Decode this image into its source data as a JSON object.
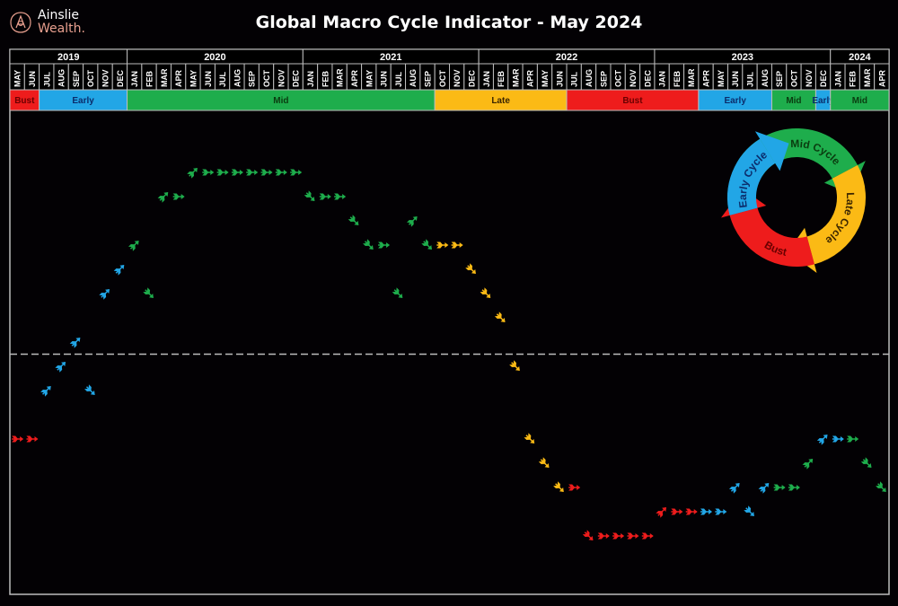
{
  "brand": {
    "line1": "Ainslie",
    "line2": "Wealth."
  },
  "chart_data": {
    "type": "line",
    "title": "Global Macro Cycle Indicator - May 2024",
    "years": [
      {
        "label": "2019",
        "months": 8
      },
      {
        "label": "2020",
        "months": 12
      },
      {
        "label": "2021",
        "months": 12
      },
      {
        "label": "2022",
        "months": 12
      },
      {
        "label": "2023",
        "months": 12
      },
      {
        "label": "2024",
        "months": 4
      }
    ],
    "months": [
      "MAY",
      "JUN",
      "JUL",
      "AUG",
      "SEP",
      "OCT",
      "NOV",
      "DEC",
      "JAN",
      "FEB",
      "MAR",
      "APR",
      "MAY",
      "JUN",
      "JUL",
      "AUG",
      "SEP",
      "OCT",
      "NOV",
      "DEC",
      "JAN",
      "FEB",
      "MAR",
      "APR",
      "MAY",
      "JUN",
      "JUL",
      "AUG",
      "SEP",
      "OCT",
      "NOV",
      "DEC",
      "JAN",
      "FEB",
      "MAR",
      "APR",
      "MAY",
      "JUN",
      "JUL",
      "AUG",
      "SEP",
      "OCT",
      "NOV",
      "DEC",
      "JAN",
      "FEB",
      "MAR",
      "APR",
      "MAY",
      "JUN",
      "JUL",
      "AUG",
      "SEP",
      "OCT",
      "NOV",
      "DEC",
      "JAN",
      "FEB",
      "MAR",
      "APR"
    ],
    "phase_bands": [
      {
        "label": "Bust",
        "phase": "bust",
        "months": 2
      },
      {
        "label": "Early",
        "phase": "early",
        "months": 6
      },
      {
        "label": "Mid",
        "phase": "mid",
        "months": 21
      },
      {
        "label": "Late",
        "phase": "late",
        "months": 9
      },
      {
        "label": "Bust",
        "phase": "bust",
        "months": 9
      },
      {
        "label": "Early",
        "phase": "early",
        "months": 5
      },
      {
        "label": "Mid",
        "phase": "mid",
        "months": 3
      },
      {
        "label": "Early",
        "phase": "early",
        "months": 1
      },
      {
        "label": "Mid",
        "phase": "mid",
        "months": 4
      }
    ],
    "values": [
      -3.5,
      -3.5,
      -1.5,
      -0.5,
      0.5,
      -1.5,
      2.5,
      3.5,
      4.5,
      2.5,
      6.5,
      6.5,
      7.5,
      7.5,
      7.5,
      7.5,
      7.5,
      7.5,
      7.5,
      7.5,
      6.5,
      6.5,
      6.5,
      5.5,
      4.5,
      4.5,
      2.5,
      5.5,
      4.5,
      4.5,
      4.5,
      3.5,
      2.5,
      1.5,
      -0.5,
      -3.5,
      -4.5,
      -5.5,
      -5.5,
      -7.5,
      -7.5,
      -7.5,
      -7.5,
      -7.5,
      -6.5,
      -6.5,
      -6.5,
      -6.5,
      -6.5,
      -5.5,
      -6.5,
      -5.5,
      -5.5,
      -5.5,
      -4.5,
      -3.5,
      -3.5,
      -3.5,
      -4.5,
      -5.5
    ],
    "directions": [
      "flat",
      "flat",
      "up",
      "up",
      "up",
      "down",
      "up",
      "up",
      "up",
      "down",
      "up",
      "flat",
      "up",
      "flat",
      "flat",
      "flat",
      "flat",
      "flat",
      "flat",
      "flat",
      "down",
      "flat",
      "flat",
      "down",
      "down",
      "flat",
      "down",
      "up",
      "down",
      "flat",
      "flat",
      "down",
      "down",
      "down",
      "down",
      "down",
      "down",
      "down",
      "flat",
      "down",
      "flat",
      "flat",
      "flat",
      "flat",
      "up",
      "flat",
      "flat",
      "flat",
      "flat",
      "up",
      "down",
      "up",
      "flat",
      "flat",
      "up",
      "up",
      "flat",
      "flat",
      "down",
      "down"
    ],
    "point_phases": [
      "bust",
      "bust",
      "early",
      "early",
      "early",
      "early",
      "early",
      "early",
      "mid",
      "mid",
      "mid",
      "mid",
      "mid",
      "mid",
      "mid",
      "mid",
      "mid",
      "mid",
      "mid",
      "mid",
      "mid",
      "mid",
      "mid",
      "mid",
      "mid",
      "mid",
      "mid",
      "mid",
      "mid",
      "late",
      "late",
      "late",
      "late",
      "late",
      "late",
      "late",
      "late",
      "late",
      "bust",
      "bust",
      "bust",
      "bust",
      "bust",
      "bust",
      "bust",
      "bust",
      "bust",
      "early",
      "early",
      "early",
      "early",
      "early",
      "mid",
      "mid",
      "mid",
      "early",
      "early",
      "mid",
      "mid",
      "mid"
    ],
    "ylim": [
      -8,
      8.5
    ],
    "reference_line": 0,
    "grid": false
  },
  "colors": {
    "bust": "#ee1c1c",
    "early": "#22a6e6",
    "mid": "#1ead4c",
    "late": "#fbba15",
    "bust_text": "#6a0000",
    "early_text": "#0b2c6b",
    "mid_text": "#0a3d10",
    "late_text": "#3a2500"
  },
  "wheel": {
    "mid": "Mid Cycle",
    "late": "Late Cycle",
    "bust": "Bust",
    "early": "Early Cycle"
  }
}
